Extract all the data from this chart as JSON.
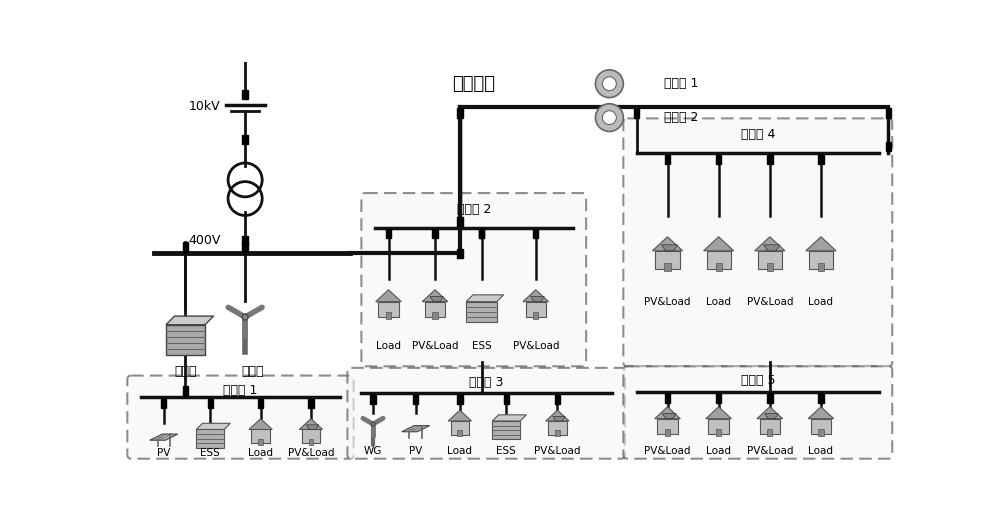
{
  "background_color": "#ffffff",
  "line_color": "#111111",
  "voltage_10kV": "10kV",
  "voltage_400V": "400V",
  "microgrid_labels": [
    "微电网 1",
    "微电网 2",
    "微电网 3",
    "微电网 4",
    "微电网 5"
  ],
  "main_labels": [
    "主储能",
    "主风机"
  ],
  "community_label": "微网社区",
  "mg1_devices": [
    "PV",
    "ESS",
    "Load",
    "PV&Load"
  ],
  "mg2_devices": [
    "Load",
    "PV&Load",
    "ESS",
    "PV&Load"
  ],
  "mg3_devices": [
    "WG",
    "PV",
    "Load",
    "ESS",
    "PV&Load"
  ],
  "mg4_devices": [
    "PV&Load",
    "Load",
    "PV&Load",
    "Load"
  ],
  "mg5_devices": [
    "PV&Load",
    "Load",
    "PV&Load",
    "Load"
  ],
  "legend_labels": [
    "聚集商 1",
    "聚集商 2"
  ]
}
